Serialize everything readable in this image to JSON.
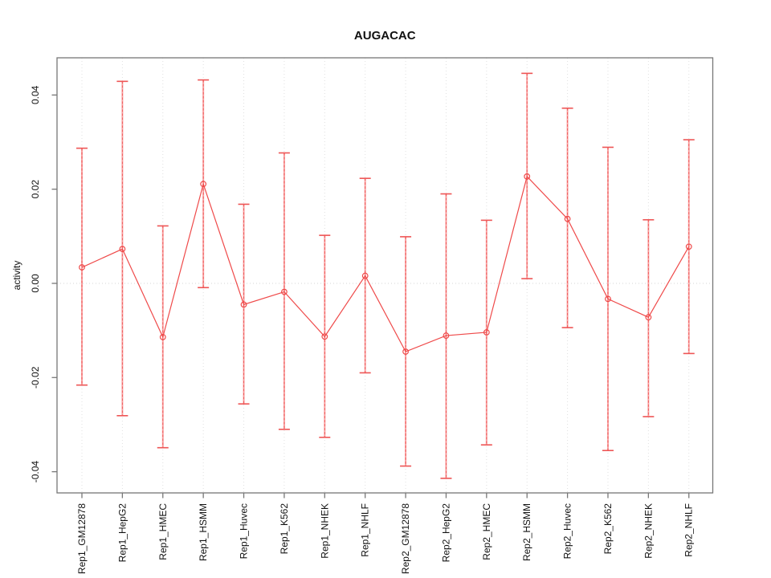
{
  "chart_data": {
    "type": "scatter",
    "title": "AUGACAC",
    "xlabel": "",
    "ylabel": "activity",
    "legend_position": "none",
    "marker": "open-circle",
    "line_style": "connected",
    "grid": {
      "vertical_dotted_per_category": true,
      "horizontal_dotted_zero_line": true
    },
    "categories": [
      "Rep1_GM12878",
      "Rep1_HepG2",
      "Rep1_HMEC",
      "Rep1_HSMM",
      "Rep1_Huvec",
      "Rep1_K562",
      "Rep1_NHEK",
      "Rep1_NHLF",
      "Rep2_GM12878",
      "Rep2_HepG2",
      "Rep2_HMEC",
      "Rep2_HSMM",
      "Rep2_Huvec",
      "Rep2_K562",
      "Rep2_NHEK",
      "Rep2_NHLF"
    ],
    "series": [
      {
        "name": "activity",
        "values": [
          0.0034,
          0.0073,
          -0.0114,
          0.0211,
          -0.0045,
          -0.0018,
          -0.0113,
          0.0016,
          -0.0145,
          -0.0111,
          -0.0104,
          0.0227,
          0.0137,
          -0.0033,
          -0.0072,
          0.0078
        ],
        "upper": [
          0.0287,
          0.0429,
          0.0122,
          0.0432,
          0.0168,
          0.0277,
          0.0102,
          0.0223,
          0.0099,
          0.019,
          0.0134,
          0.0446,
          0.0372,
          0.0289,
          0.0135,
          0.0305
        ],
        "lower": [
          -0.0216,
          -0.0281,
          -0.0349,
          -0.0009,
          -0.0256,
          -0.031,
          -0.0327,
          -0.019,
          -0.0388,
          -0.0414,
          -0.0343,
          0.001,
          -0.0094,
          -0.0355,
          -0.0283,
          -0.0149
        ]
      }
    ],
    "yticks": [
      -0.04,
      -0.02,
      0.0,
      0.02,
      0.04
    ],
    "ylim": [
      -0.0445,
      0.0479
    ],
    "colors": {
      "series_red": "#ef4a4a",
      "error_bar_pink": "#f9a5a5",
      "error_dash_red": "#ee5555",
      "grid_gray": "#e0e0e0",
      "zero_line_gray": "#d6d6d6",
      "axis_gray": "#777777",
      "text_black": "#111111",
      "background": "#ffffff"
    }
  }
}
